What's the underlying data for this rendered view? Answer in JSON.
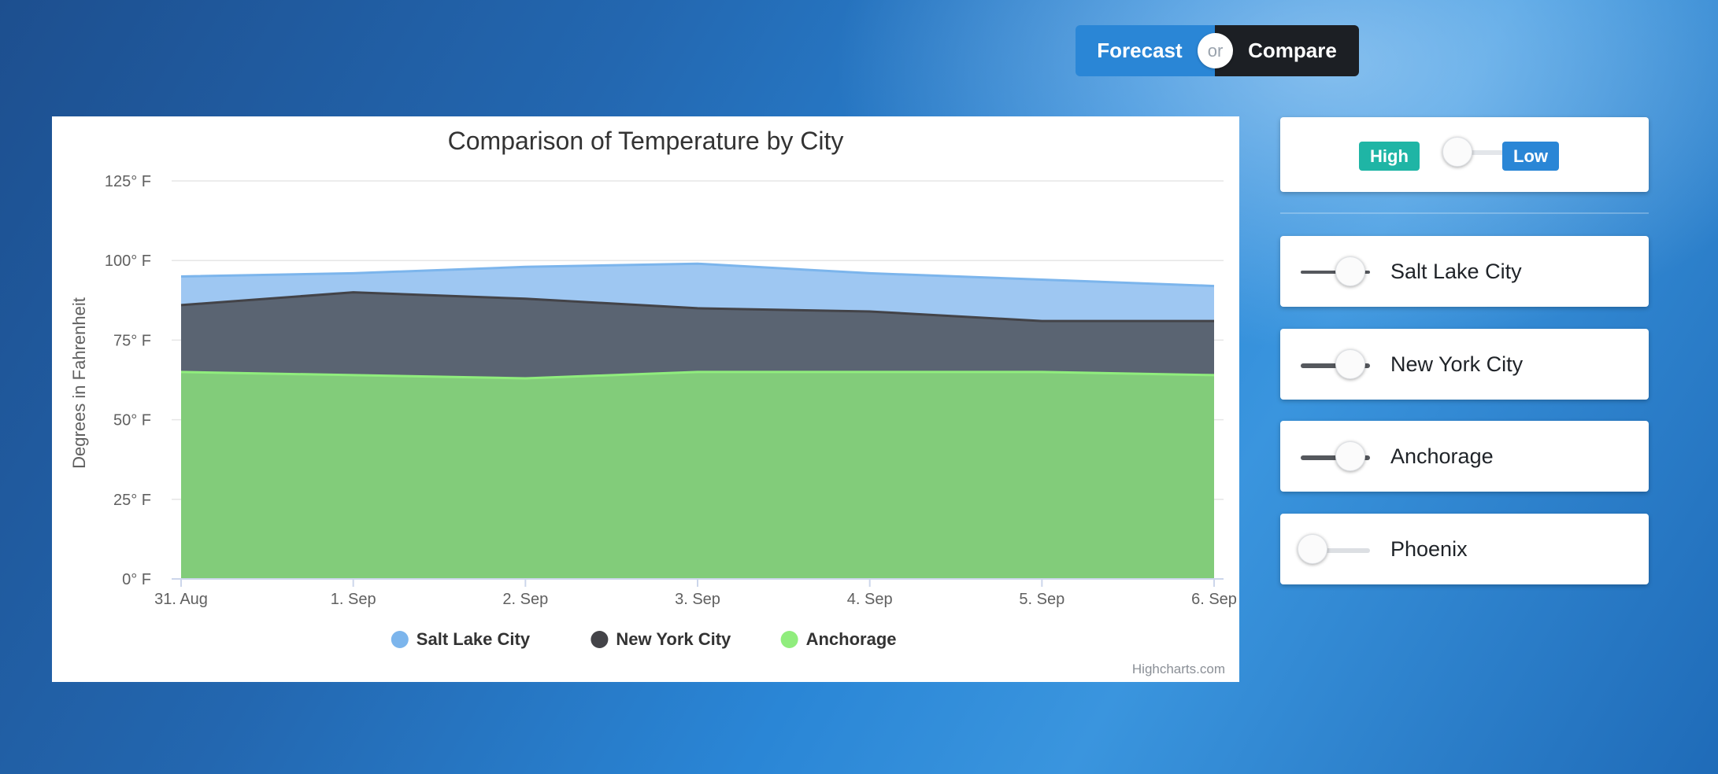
{
  "mode_toggle": {
    "forecast_label": "Forecast",
    "or_label": "or",
    "compare_label": "Compare",
    "active": "Compare"
  },
  "chart": {
    "credit": "Highcharts.com"
  },
  "chart_data": {
    "type": "area",
    "title": "Comparison of Temperature by City",
    "ylabel": "Degrees in Fahrenheit",
    "xlabel": "",
    "categories": [
      "31. Aug",
      "1. Sep",
      "2. Sep",
      "3. Sep",
      "4. Sep",
      "5. Sep",
      "6. Sep"
    ],
    "yticks": [
      "0° F",
      "25° F",
      "50° F",
      "75° F",
      "100° F",
      "125° F"
    ],
    "ylim": [
      0,
      125
    ],
    "grid": true,
    "legend_position": "bottom-center",
    "series": [
      {
        "name": "Salt Lake City",
        "color": "#9ec7f2",
        "line_color": "#7cb5ec",
        "values": [
          95,
          96,
          98,
          99,
          96,
          94,
          92
        ]
      },
      {
        "name": "New York City",
        "color": "#5a6472",
        "line_color": "#434348",
        "values": [
          86,
          90,
          88,
          85,
          84,
          81,
          81
        ]
      },
      {
        "name": "Anchorage",
        "color": "#82cc7a",
        "line_color": "#90ed7d",
        "values": [
          65,
          64,
          63,
          65,
          65,
          65,
          64
        ]
      }
    ]
  },
  "hilo": {
    "high_label": "High",
    "low_label": "Low",
    "high_color": "#1fb5a5",
    "low_color": "#2a86d6"
  },
  "cities": [
    {
      "label": "Salt Lake City",
      "on": true
    },
    {
      "label": "New York City",
      "on": true
    },
    {
      "label": "Anchorage",
      "on": true
    },
    {
      "label": "Phoenix",
      "on": false
    }
  ]
}
